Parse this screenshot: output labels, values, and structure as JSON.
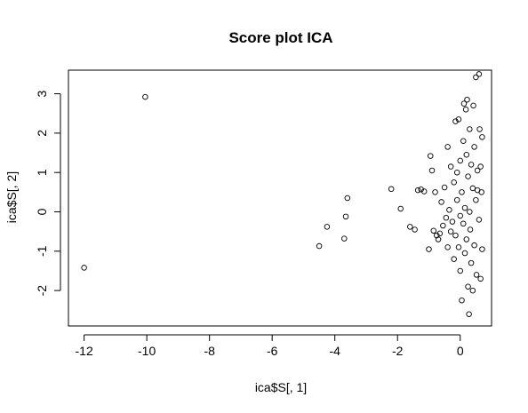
{
  "chart_data": {
    "type": "scatter",
    "title": "Score plot ICA",
    "xlabel": "ica$S[, 1]",
    "ylabel": "ica$S[, 2]",
    "xlim": [
      -12.5,
      1.0
    ],
    "ylim": [
      -2.9,
      3.6
    ],
    "xticks": [
      -12,
      -10,
      -8,
      -6,
      -4,
      -2,
      0
    ],
    "yticks": [
      -2,
      -1,
      0,
      1,
      2,
      3
    ],
    "grid": false,
    "legend": "none",
    "points": [
      [
        -12.0,
        -1.42
      ],
      [
        -10.05,
        2.92
      ],
      [
        -4.5,
        -0.87
      ],
      [
        -4.25,
        -0.38
      ],
      [
        -3.7,
        -0.68
      ],
      [
        -3.65,
        -0.12
      ],
      [
        -3.6,
        0.35
      ],
      [
        -2.2,
        0.58
      ],
      [
        -1.9,
        0.08
      ],
      [
        -1.6,
        -0.38
      ],
      [
        -1.45,
        -0.45
      ],
      [
        -1.35,
        0.55
      ],
      [
        -1.25,
        0.57
      ],
      [
        -1.15,
        0.52
      ],
      [
        -1.0,
        -0.95
      ],
      [
        -0.95,
        1.42
      ],
      [
        -0.9,
        1.05
      ],
      [
        -0.85,
        -0.48
      ],
      [
        -0.8,
        0.5
      ],
      [
        -0.75,
        -0.6
      ],
      [
        -0.7,
        -0.7
      ],
      [
        -0.65,
        -0.55
      ],
      [
        -0.6,
        0.25
      ],
      [
        -0.55,
        -0.35
      ],
      [
        -0.5,
        0.62
      ],
      [
        -0.45,
        -0.15
      ],
      [
        -0.4,
        1.65
      ],
      [
        -0.4,
        -0.9
      ],
      [
        -0.35,
        0.05
      ],
      [
        -0.3,
        -0.5
      ],
      [
        -0.3,
        1.15
      ],
      [
        -0.25,
        -0.25
      ],
      [
        -0.2,
        0.75
      ],
      [
        -0.2,
        -1.2
      ],
      [
        -0.15,
        2.3
      ],
      [
        -0.15,
        -0.6
      ],
      [
        -0.1,
        1.0
      ],
      [
        -0.1,
        0.3
      ],
      [
        -0.05,
        -0.9
      ],
      [
        -0.05,
        2.35
      ],
      [
        0.0,
        -0.1
      ],
      [
        0.0,
        1.3
      ],
      [
        0.0,
        -1.5
      ],
      [
        0.05,
        0.5
      ],
      [
        0.05,
        -2.25
      ],
      [
        0.1,
        1.8
      ],
      [
        0.1,
        -0.3
      ],
      [
        0.12,
        2.75
      ],
      [
        0.15,
        0.1
      ],
      [
        0.15,
        -1.05
      ],
      [
        0.18,
        2.6
      ],
      [
        0.2,
        1.45
      ],
      [
        0.2,
        -0.7
      ],
      [
        0.22,
        2.85
      ],
      [
        0.25,
        0.9
      ],
      [
        0.25,
        -1.9
      ],
      [
        0.28,
        -2.6
      ],
      [
        0.3,
        0.0
      ],
      [
        0.3,
        2.1
      ],
      [
        0.32,
        -0.45
      ],
      [
        0.35,
        1.2
      ],
      [
        0.35,
        -1.3
      ],
      [
        0.4,
        0.6
      ],
      [
        0.4,
        -2.0
      ],
      [
        0.42,
        2.7
      ],
      [
        0.45,
        1.65
      ],
      [
        0.45,
        -0.85
      ],
      [
        0.5,
        0.3
      ],
      [
        0.5,
        3.42
      ],
      [
        0.52,
        -1.6
      ],
      [
        0.55,
        1.05
      ],
      [
        0.55,
        0.55
      ],
      [
        0.6,
        3.5
      ],
      [
        0.6,
        -0.2
      ],
      [
        0.62,
        2.1
      ],
      [
        0.65,
        1.15
      ],
      [
        0.65,
        -1.7
      ],
      [
        0.68,
        0.5
      ],
      [
        0.7,
        -0.95
      ],
      [
        0.7,
        1.9
      ]
    ]
  }
}
